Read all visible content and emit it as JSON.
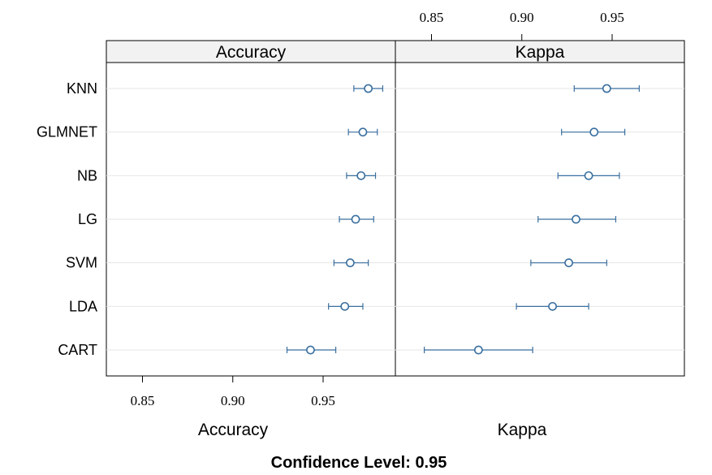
{
  "chart_data": {
    "type": "dotplot",
    "models": [
      "KNN",
      "GLMNET",
      "NB",
      "LG",
      "SVM",
      "LDA",
      "CART"
    ],
    "panels": [
      {
        "metric": "Accuracy",
        "xlim": [
          0.83,
          0.99
        ],
        "ticks": [
          0.85,
          0.9,
          0.95
        ],
        "tick_labels": [
          "0.85",
          "0.90",
          "0.95"
        ],
        "estimates": [
          0.975,
          0.972,
          0.971,
          0.968,
          0.965,
          0.962,
          0.943
        ],
        "lower": [
          0.967,
          0.964,
          0.963,
          0.959,
          0.956,
          0.953,
          0.93
        ],
        "upper": [
          0.983,
          0.98,
          0.979,
          0.978,
          0.975,
          0.972,
          0.957
        ]
      },
      {
        "metric": "Kappa",
        "xlim": [
          0.83,
          0.99
        ],
        "ticks": [
          0.85,
          0.9,
          0.95
        ],
        "tick_labels": [
          "0.85",
          "0.90",
          "0.95"
        ],
        "estimates": [
          0.947,
          0.94,
          0.937,
          0.93,
          0.926,
          0.917,
          0.876
        ],
        "lower": [
          0.929,
          0.922,
          0.92,
          0.909,
          0.905,
          0.897,
          0.846
        ],
        "upper": [
          0.965,
          0.957,
          0.954,
          0.952,
          0.947,
          0.937,
          0.906
        ]
      }
    ],
    "xlabels": [
      "Accuracy",
      "Kappa"
    ],
    "footer": "Confidence Level: 0.95",
    "colors": {
      "series": "#3a6f9f",
      "grid": "#e6e6e6",
      "strip": "#f2f2f2",
      "frame": "#000000"
    }
  }
}
